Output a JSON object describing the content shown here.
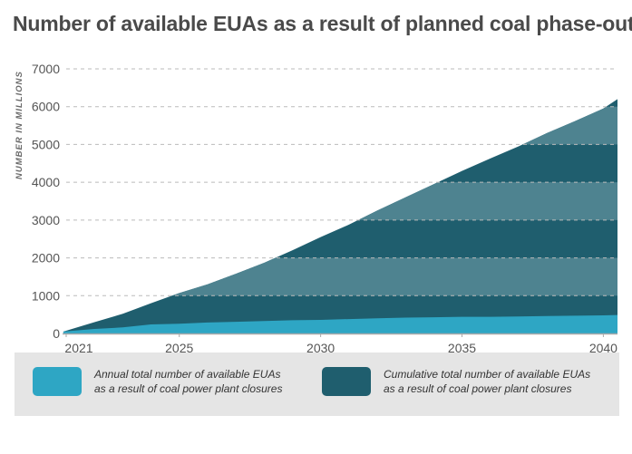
{
  "title": "Number of available EUAs as a result of planned coal phase-out",
  "colors": {
    "annual": "#2ea6c4",
    "cumulative": "#1f5e6e",
    "band": "#4e8390",
    "grid": "#bbbbbb",
    "axis": "#aaaaaa",
    "legend_bg": "#e5e5e5"
  },
  "chart_data": {
    "type": "area",
    "title": "Number of available EUAs as a result of planned coal phase-out",
    "xlabel": "",
    "ylabel": "NUMBER IN MILLIONS",
    "xlim": [
      2021,
      2040.5
    ],
    "ylim": [
      0,
      7000
    ],
    "x_ticks": [
      "2021",
      "2025",
      "2030",
      "2035",
      "2040"
    ],
    "y_ticks": [
      "0",
      "1000",
      "2000",
      "3000",
      "4000",
      "5000",
      "6000",
      "7000"
    ],
    "grid": true,
    "stacked": false,
    "x": [
      2020.9,
      2022,
      2023,
      2024,
      2025,
      2026,
      2027,
      2028,
      2029,
      2030,
      2031,
      2032,
      2033,
      2034,
      2035,
      2036,
      2037,
      2038,
      2039,
      2040,
      2040.5
    ],
    "series": [
      {
        "name": "Cumulative total number of available EUAs as a result of coal power plant closures",
        "values": [
          50,
          300,
          520,
          800,
          1070,
          1300,
          1580,
          1870,
          2200,
          2550,
          2880,
          3250,
          3600,
          3950,
          4300,
          4630,
          4950,
          5300,
          5620,
          5950,
          6200
        ]
      },
      {
        "name": "Annual total number of available EUAs as a result of coal power plant closures",
        "values": [
          50,
          120,
          160,
          240,
          260,
          290,
          310,
          330,
          350,
          360,
          380,
          400,
          420,
          430,
          440,
          440,
          450,
          460,
          470,
          480,
          490
        ]
      }
    ],
    "legend": "bottom"
  },
  "legend": {
    "annual_label": "Annual total number of available EUAs\nas a result of coal power plant closures",
    "cumulative_label": "Cumulative total number of available EUAs\nas a result of coal power plant closures"
  }
}
